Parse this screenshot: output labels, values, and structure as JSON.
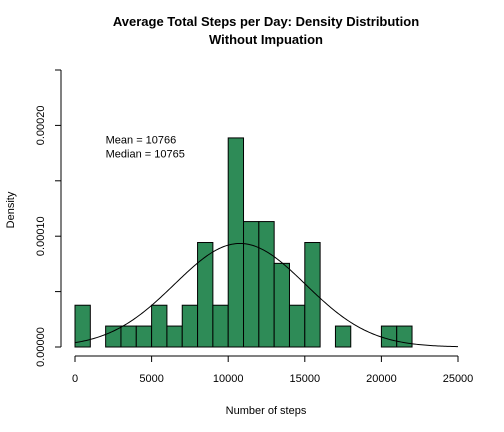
{
  "chart_data": {
    "type": "bar",
    "title": "Average Total Steps per Day: Density Distribution",
    "subtitle": "Without Impuation",
    "xlabel": "Number of steps",
    "ylabel": "Density",
    "xlim": [
      0,
      25000
    ],
    "ylim": [
      0,
      0.00025
    ],
    "x_ticks": [
      {
        "value": 0,
        "label": "0"
      },
      {
        "value": 5000,
        "label": "5000"
      },
      {
        "value": 10000,
        "label": "10000"
      },
      {
        "value": 15000,
        "label": "15000"
      },
      {
        "value": 20000,
        "label": "20000"
      },
      {
        "value": 25000,
        "label": "25000"
      }
    ],
    "y_ticks": [
      {
        "value": 0,
        "label": "0.00000"
      },
      {
        "value": 0.0001,
        "label": "0.00010"
      },
      {
        "value": 0.0002,
        "label": "0.00020"
      }
    ],
    "bin_width": 1000,
    "bins": [
      {
        "start": 0,
        "density": 3.77e-05
      },
      {
        "start": 1000,
        "density": 0
      },
      {
        "start": 2000,
        "density": 1.89e-05
      },
      {
        "start": 3000,
        "density": 1.89e-05
      },
      {
        "start": 4000,
        "density": 1.89e-05
      },
      {
        "start": 5000,
        "density": 3.77e-05
      },
      {
        "start": 6000,
        "density": 1.89e-05
      },
      {
        "start": 7000,
        "density": 3.77e-05
      },
      {
        "start": 8000,
        "density": 9.43e-05
      },
      {
        "start": 9000,
        "density": 3.77e-05
      },
      {
        "start": 10000,
        "density": 0.0001887
      },
      {
        "start": 11000,
        "density": 0.0001132
      },
      {
        "start": 12000,
        "density": 0.0001132
      },
      {
        "start": 13000,
        "density": 7.55e-05
      },
      {
        "start": 14000,
        "density": 3.77e-05
      },
      {
        "start": 15000,
        "density": 9.43e-05
      },
      {
        "start": 16000,
        "density": 0
      },
      {
        "start": 17000,
        "density": 1.89e-05
      },
      {
        "start": 18000,
        "density": 0
      },
      {
        "start": 19000,
        "density": 0
      },
      {
        "start": 20000,
        "density": 1.89e-05
      },
      {
        "start": 21000,
        "density": 1.89e-05
      }
    ],
    "density_curve": {
      "mean": 10766,
      "sd": 4269
    },
    "annotation": {
      "mean_line": "Mean =  10766",
      "median_line": "Median =  10765",
      "anchor": {
        "x": 2000,
        "y": 0.00018
      }
    },
    "bar_color": "#2E8B57",
    "bar_stroke": "#000000",
    "curve_color": "#000000",
    "grid": false,
    "legend": "none"
  }
}
